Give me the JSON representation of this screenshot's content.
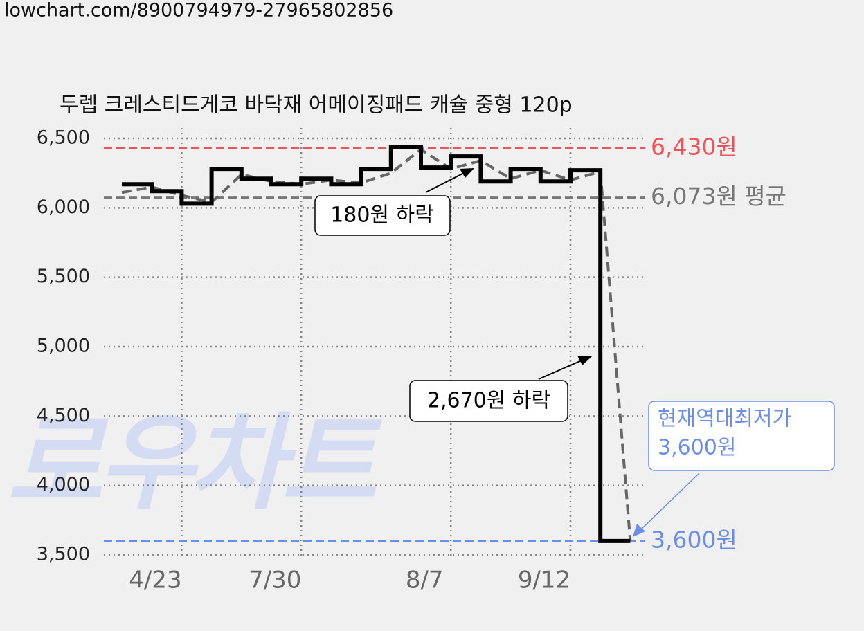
{
  "url": "lowchart.com/8900794979-27965802856",
  "chart_data": {
    "type": "step-line",
    "title": "두렙 크레스티드게코 바닥재 어메이징패드 캐슐 중형 120p",
    "watermark": "로우차트",
    "categories": [
      null,
      null,
      "4/23",
      null,
      null,
      null,
      "7/30",
      null,
      null,
      null,
      null,
      "8/7",
      null,
      null,
      null,
      "9/12",
      null,
      null
    ],
    "series": [
      {
        "color": "#000000",
        "style": "step",
        "values": [
          6170,
          6120,
          6030,
          6280,
          6210,
          6170,
          6210,
          6170,
          6280,
          6440,
          6290,
          6370,
          6190,
          6280,
          6190,
          6270,
          3600,
          null
        ]
      },
      {
        "color": "#666666",
        "style": "dashed",
        "values": [
          6110,
          6150,
          6090,
          6040,
          6240,
          6190,
          6170,
          6200,
          6180,
          6250,
          6420,
          6280,
          6340,
          6210,
          6270,
          6200,
          6260,
          3600
        ]
      }
    ],
    "ylim": [
      3500,
      6500
    ],
    "yticks": [
      {
        "value": 3500,
        "label": "3,500"
      },
      {
        "value": 4000,
        "label": "4,000"
      },
      {
        "value": 4500,
        "label": "4,500"
      },
      {
        "value": 5000,
        "label": "5,000"
      },
      {
        "value": 5500,
        "label": "5,500"
      },
      {
        "value": 6000,
        "label": "6,000"
      },
      {
        "value": 6500,
        "label": "6,500"
      }
    ],
    "grid": true,
    "ref_lines": [
      {
        "value": 6430,
        "label": "6,430원",
        "color": "#f0525a"
      },
      {
        "value": 6073,
        "label": "6,073원 평균",
        "color": "#777777"
      },
      {
        "value": 3600,
        "label": "3,600원",
        "color": "#6b8fe8"
      }
    ],
    "annotations": [
      "180원 하락",
      "2,670원 하락"
    ],
    "lowest_note": [
      "현재역대최저가",
      "3,600원"
    ]
  }
}
